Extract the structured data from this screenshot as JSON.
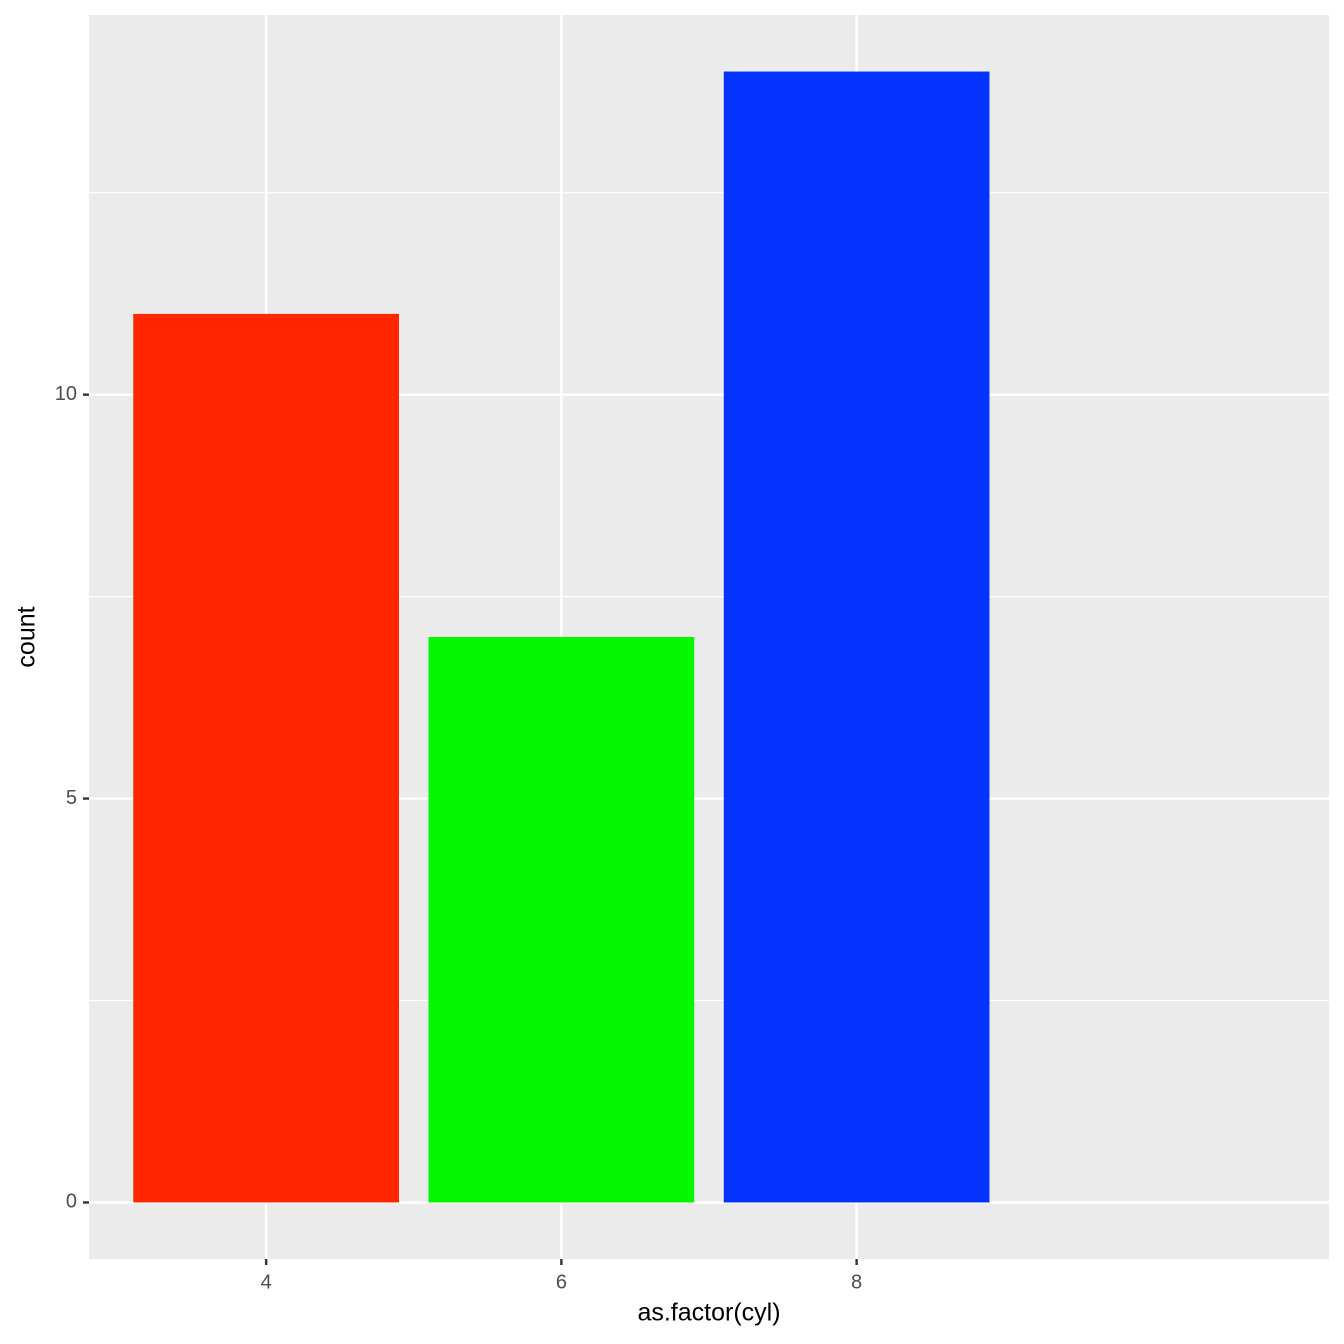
{
  "chart_data": {
    "type": "bar",
    "x_label": "as.factor(cyl)",
    "y_label": "count",
    "categories": [
      "4",
      "6",
      "8"
    ],
    "values": [
      11,
      7,
      14
    ],
    "colors": [
      "#ff2600",
      "#05f700",
      "#0433ff"
    ],
    "ylim": [
      -0.7,
      14.7
    ],
    "yticks": [
      0,
      5,
      10
    ],
    "yminorticks": [
      2.5,
      7.5,
      12.5
    ],
    "grid": true
  }
}
